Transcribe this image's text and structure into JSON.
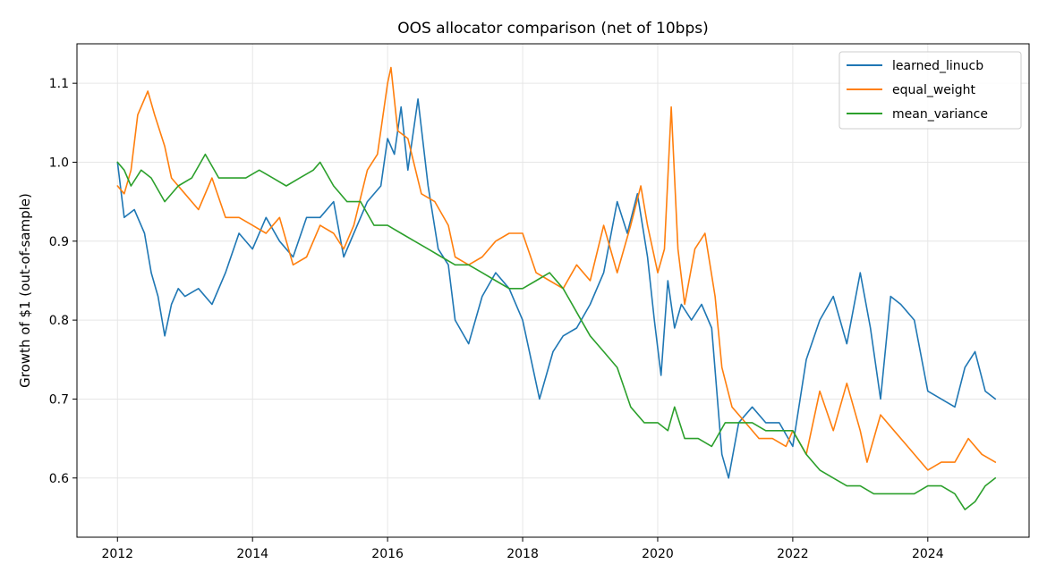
{
  "chart_data": {
    "type": "line",
    "title": "OOS allocator comparison (net of 10bps)",
    "xlabel": "",
    "ylabel": "Growth of $1 (out-of-sample)",
    "xlim": [
      2011.4,
      2025.5
    ],
    "ylim": [
      0.525,
      1.15
    ],
    "xticks": [
      2012,
      2014,
      2016,
      2018,
      2020,
      2022,
      2024
    ],
    "xtick_labels": [
      "2012",
      "2014",
      "2016",
      "2018",
      "2020",
      "2022",
      "2024"
    ],
    "yticks": [
      0.6,
      0.7,
      0.8,
      0.9,
      1.0,
      1.1
    ],
    "ytick_labels": [
      "0.6",
      "0.7",
      "0.8",
      "0.9",
      "1.0",
      "1.1"
    ],
    "grid": true,
    "legend_position": "top-right",
    "series": [
      {
        "name": "learned_linucb",
        "color": "#1f77b4",
        "x": [
          2012.0,
          2012.1,
          2012.25,
          2012.4,
          2012.5,
          2012.6,
          2012.7,
          2012.8,
          2012.9,
          2013.0,
          2013.2,
          2013.4,
          2013.6,
          2013.8,
          2014.0,
          2014.2,
          2014.4,
          2014.6,
          2014.8,
          2015.0,
          2015.2,
          2015.35,
          2015.5,
          2015.7,
          2015.9,
          2016.0,
          2016.1,
          2016.2,
          2016.3,
          2016.45,
          2016.6,
          2016.75,
          2016.9,
          2017.0,
          2017.2,
          2017.4,
          2017.6,
          2017.8,
          2018.0,
          2018.1,
          2018.25,
          2018.45,
          2018.6,
          2018.8,
          2019.0,
          2019.2,
          2019.4,
          2019.55,
          2019.7,
          2019.85,
          2019.95,
          2020.05,
          2020.15,
          2020.25,
          2020.35,
          2020.5,
          2020.65,
          2020.8,
          2020.95,
          2021.05,
          2021.2,
          2021.4,
          2021.6,
          2021.8,
          2022.0,
          2022.2,
          2022.4,
          2022.6,
          2022.8,
          2023.0,
          2023.15,
          2023.3,
          2023.45,
          2023.6,
          2023.8,
          2024.0,
          2024.2,
          2024.4,
          2024.55,
          2024.7,
          2024.85,
          2025.0
        ],
        "values": [
          1.0,
          0.93,
          0.94,
          0.91,
          0.86,
          0.83,
          0.78,
          0.82,
          0.84,
          0.83,
          0.84,
          0.82,
          0.86,
          0.91,
          0.89,
          0.93,
          0.9,
          0.88,
          0.93,
          0.93,
          0.95,
          0.88,
          0.91,
          0.95,
          0.97,
          1.03,
          1.01,
          1.07,
          0.99,
          1.08,
          0.97,
          0.89,
          0.87,
          0.8,
          0.77,
          0.83,
          0.86,
          0.84,
          0.8,
          0.76,
          0.7,
          0.76,
          0.78,
          0.79,
          0.82,
          0.86,
          0.95,
          0.91,
          0.96,
          0.88,
          0.8,
          0.73,
          0.85,
          0.79,
          0.82,
          0.8,
          0.82,
          0.79,
          0.63,
          0.6,
          0.67,
          0.69,
          0.67,
          0.67,
          0.64,
          0.75,
          0.8,
          0.83,
          0.77,
          0.86,
          0.79,
          0.7,
          0.83,
          0.82,
          0.8,
          0.71,
          0.7,
          0.69,
          0.74,
          0.76,
          0.71,
          0.7
        ]
      },
      {
        "name": "equal_weight",
        "color": "#ff7f0e",
        "x": [
          2012.0,
          2012.1,
          2012.2,
          2012.3,
          2012.45,
          2012.55,
          2012.7,
          2012.8,
          2013.0,
          2013.2,
          2013.4,
          2013.6,
          2013.8,
          2014.0,
          2014.2,
          2014.4,
          2014.6,
          2014.8,
          2015.0,
          2015.2,
          2015.35,
          2015.5,
          2015.7,
          2015.85,
          2016.0,
          2016.05,
          2016.15,
          2016.3,
          2016.5,
          2016.7,
          2016.9,
          2017.0,
          2017.2,
          2017.4,
          2017.6,
          2017.8,
          2018.0,
          2018.2,
          2018.4,
          2018.6,
          2018.8,
          2019.0,
          2019.2,
          2019.4,
          2019.6,
          2019.75,
          2019.85,
          2020.0,
          2020.1,
          2020.2,
          2020.3,
          2020.4,
          2020.55,
          2020.7,
          2020.85,
          2020.95,
          2021.1,
          2021.3,
          2021.5,
          2021.7,
          2021.9,
          2022.0,
          2022.2,
          2022.4,
          2022.6,
          2022.8,
          2023.0,
          2023.1,
          2023.3,
          2023.5,
          2023.7,
          2023.9,
          2024.0,
          2024.2,
          2024.4,
          2024.6,
          2024.8,
          2025.0
        ],
        "values": [
          0.97,
          0.96,
          0.99,
          1.06,
          1.09,
          1.06,
          1.02,
          0.98,
          0.96,
          0.94,
          0.98,
          0.93,
          0.93,
          0.92,
          0.91,
          0.93,
          0.87,
          0.88,
          0.92,
          0.91,
          0.89,
          0.92,
          0.99,
          1.01,
          1.1,
          1.12,
          1.04,
          1.03,
          0.96,
          0.95,
          0.92,
          0.88,
          0.87,
          0.88,
          0.9,
          0.91,
          0.91,
          0.86,
          0.85,
          0.84,
          0.87,
          0.85,
          0.92,
          0.86,
          0.92,
          0.97,
          0.92,
          0.86,
          0.89,
          1.07,
          0.89,
          0.82,
          0.89,
          0.91,
          0.83,
          0.74,
          0.69,
          0.67,
          0.65,
          0.65,
          0.64,
          0.66,
          0.63,
          0.71,
          0.66,
          0.72,
          0.66,
          0.62,
          0.68,
          0.66,
          0.64,
          0.62,
          0.61,
          0.62,
          0.62,
          0.65,
          0.63,
          0.62
        ]
      },
      {
        "name": "mean_variance",
        "color": "#2ca02c",
        "x": [
          2012.0,
          2012.1,
          2012.2,
          2012.35,
          2012.5,
          2012.7,
          2012.9,
          2013.1,
          2013.3,
          2013.5,
          2013.7,
          2013.9,
          2014.1,
          2014.3,
          2014.5,
          2014.7,
          2014.9,
          2015.0,
          2015.2,
          2015.4,
          2015.6,
          2015.8,
          2016.0,
          2016.2,
          2016.4,
          2016.6,
          2016.8,
          2017.0,
          2017.2,
          2017.4,
          2017.6,
          2017.8,
          2018.0,
          2018.2,
          2018.4,
          2018.6,
          2018.8,
          2019.0,
          2019.2,
          2019.4,
          2019.6,
          2019.8,
          2020.0,
          2020.15,
          2020.25,
          2020.4,
          2020.6,
          2020.8,
          2021.0,
          2021.2,
          2021.4,
          2021.6,
          2021.8,
          2022.0,
          2022.2,
          2022.4,
          2022.6,
          2022.8,
          2023.0,
          2023.2,
          2023.4,
          2023.6,
          2023.8,
          2024.0,
          2024.2,
          2024.4,
          2024.55,
          2024.7,
          2024.85,
          2025.0
        ],
        "values": [
          1.0,
          0.99,
          0.97,
          0.99,
          0.98,
          0.95,
          0.97,
          0.98,
          1.01,
          0.98,
          0.98,
          0.98,
          0.99,
          0.98,
          0.97,
          0.98,
          0.99,
          1.0,
          0.97,
          0.95,
          0.95,
          0.92,
          0.92,
          0.91,
          0.9,
          0.89,
          0.88,
          0.87,
          0.87,
          0.86,
          0.85,
          0.84,
          0.84,
          0.85,
          0.86,
          0.84,
          0.81,
          0.78,
          0.76,
          0.74,
          0.69,
          0.67,
          0.67,
          0.66,
          0.69,
          0.65,
          0.65,
          0.64,
          0.67,
          0.67,
          0.67,
          0.66,
          0.66,
          0.66,
          0.63,
          0.61,
          0.6,
          0.59,
          0.59,
          0.58,
          0.58,
          0.58,
          0.58,
          0.59,
          0.59,
          0.58,
          0.56,
          0.57,
          0.59,
          0.6
        ]
      }
    ]
  }
}
